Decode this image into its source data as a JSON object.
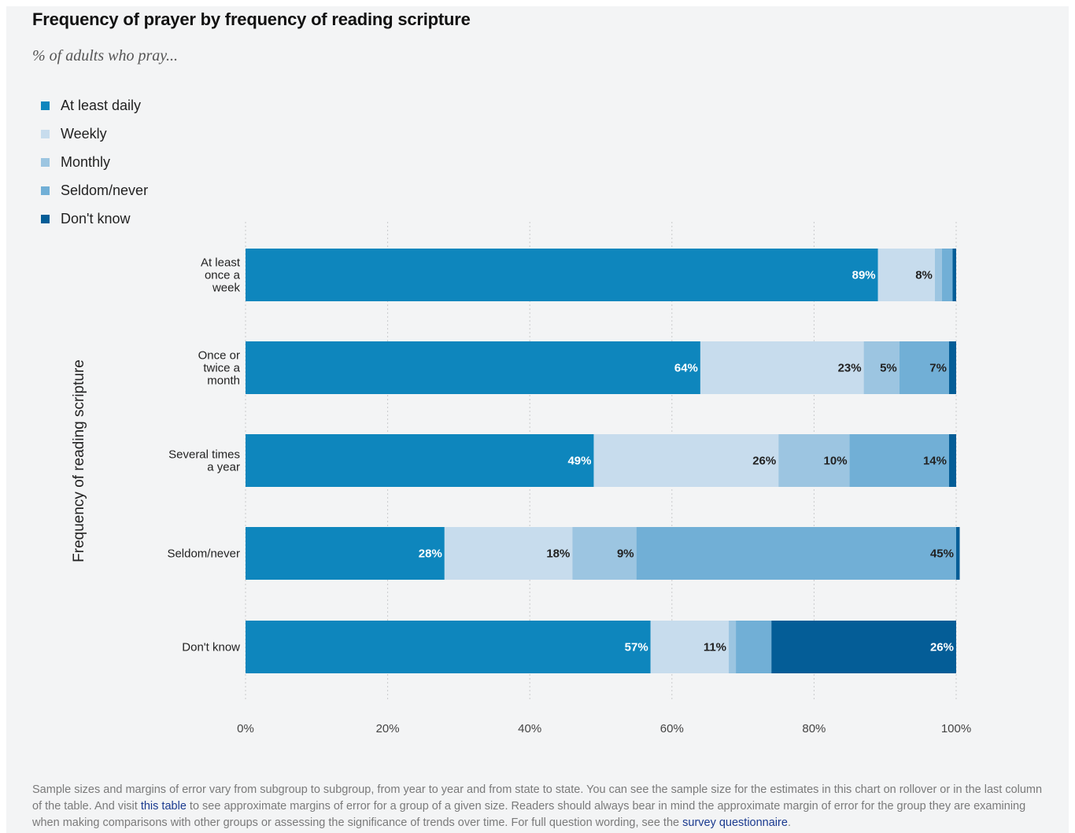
{
  "title": "Frequency of prayer by frequency of reading scripture",
  "subtitle": "% of adults who pray...",
  "legend": [
    {
      "label": "At least daily",
      "color": "#0e86bd"
    },
    {
      "label": "Weekly",
      "color": "#c7dced"
    },
    {
      "label": "Monthly",
      "color": "#9cc5e1"
    },
    {
      "label": "Seldom/never",
      "color": "#71afd6"
    },
    {
      "label": "Don't know",
      "color": "#045d97"
    }
  ],
  "chart_data": {
    "type": "bar",
    "orientation": "horizontal",
    "stacked": true,
    "ylabel": "Frequency of reading scripture",
    "xlim": [
      0,
      100
    ],
    "x_ticks": [
      "0%",
      "20%",
      "40%",
      "60%",
      "80%",
      "100%"
    ],
    "grid": true,
    "categories": [
      [
        "At least",
        "once a",
        "week"
      ],
      [
        "Once or",
        "twice a",
        "month"
      ],
      [
        "Several times",
        "a year"
      ],
      [
        "Seldom/never"
      ],
      [
        "Don't know"
      ]
    ],
    "series": [
      {
        "name": "At least daily",
        "values": [
          89,
          64,
          49,
          28,
          57
        ],
        "labels": [
          "89%",
          "64%",
          "49%",
          "28%",
          "57%"
        ],
        "label_color": "#ffffff"
      },
      {
        "name": "Weekly",
        "values": [
          8,
          23,
          26,
          18,
          11
        ],
        "labels": [
          "8%",
          "23%",
          "26%",
          "18%",
          "11%"
        ],
        "label_color": "#222222"
      },
      {
        "name": "Monthly",
        "values": [
          1,
          5,
          10,
          9,
          1
        ],
        "labels": [
          "",
          "5%",
          "10%",
          "9%",
          ""
        ],
        "label_color": "#222222"
      },
      {
        "name": "Seldom/never",
        "values": [
          1.5,
          7,
          14,
          45,
          5
        ],
        "labels": [
          "",
          "7%",
          "14%",
          "45%",
          ""
        ],
        "label_color": "#222222"
      },
      {
        "name": "Don't know",
        "values": [
          0.5,
          1,
          1,
          0.5,
          26
        ],
        "labels": [
          "",
          "",
          "",
          "",
          "26%"
        ],
        "label_color": "#ffffff"
      }
    ]
  },
  "footnote": {
    "text1": "Sample sizes and margins of error vary from subgroup to subgroup, from year to year and from state to state. You can see the sample size for the estimates in this chart on rollover or in the last column of the table. And visit ",
    "link1": "this table",
    "text2": " to see approximate margins of error for a group of a given size. Readers should always bear in mind the approximate margin of error for the group they are examining when making comparisons with other groups or assessing the significance of trends over time. For full question wording, see the ",
    "link2": "survey questionnaire",
    "text3": "."
  }
}
